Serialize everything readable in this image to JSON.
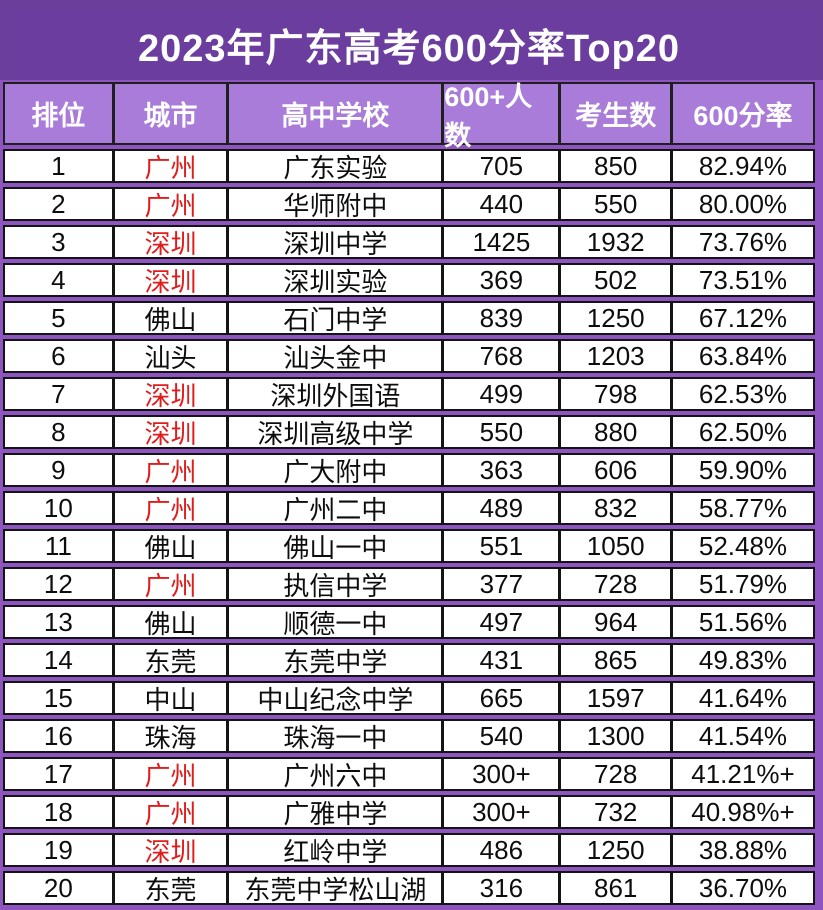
{
  "title": "2023年广东高考600分率Top20",
  "colors": {
    "title_bg": "#6a3d9e",
    "header_bg": "#aa7cd9",
    "frame_bg": "#8e55c0",
    "highlight_city_text": "#e11c1c",
    "border": "#141414",
    "row_bg": "#ffffff"
  },
  "table": {
    "columns": [
      {
        "key": "rank",
        "label": "排位"
      },
      {
        "key": "city",
        "label": "城市"
      },
      {
        "key": "school",
        "label": "高中学校"
      },
      {
        "key": "count600",
        "label": "600+人数"
      },
      {
        "key": "candidates",
        "label": "考生数"
      },
      {
        "key": "rate",
        "label": "600分率"
      }
    ],
    "rows": [
      {
        "rank": "1",
        "city": "广州",
        "city_red": true,
        "school": "广东实验",
        "count600": "705",
        "candidates": "850",
        "rate": "82.94%"
      },
      {
        "rank": "2",
        "city": "广州",
        "city_red": true,
        "school": "华师附中",
        "count600": "440",
        "candidates": "550",
        "rate": "80.00%"
      },
      {
        "rank": "3",
        "city": "深圳",
        "city_red": true,
        "school": "深圳中学",
        "count600": "1425",
        "candidates": "1932",
        "rate": "73.76%"
      },
      {
        "rank": "4",
        "city": "深圳",
        "city_red": true,
        "school": "深圳实验",
        "count600": "369",
        "candidates": "502",
        "rate": "73.51%"
      },
      {
        "rank": "5",
        "city": "佛山",
        "city_red": false,
        "school": "石门中学",
        "count600": "839",
        "candidates": "1250",
        "rate": "67.12%"
      },
      {
        "rank": "6",
        "city": "汕头",
        "city_red": false,
        "school": "汕头金中",
        "count600": "768",
        "candidates": "1203",
        "rate": "63.84%"
      },
      {
        "rank": "7",
        "city": "深圳",
        "city_red": true,
        "school": "深圳外国语",
        "count600": "499",
        "candidates": "798",
        "rate": "62.53%"
      },
      {
        "rank": "8",
        "city": "深圳",
        "city_red": true,
        "school": "深圳高级中学",
        "count600": "550",
        "candidates": "880",
        "rate": "62.50%"
      },
      {
        "rank": "9",
        "city": "广州",
        "city_red": true,
        "school": "广大附中",
        "count600": "363",
        "candidates": "606",
        "rate": "59.90%"
      },
      {
        "rank": "10",
        "city": "广州",
        "city_red": true,
        "school": "广州二中",
        "count600": "489",
        "candidates": "832",
        "rate": "58.77%"
      },
      {
        "rank": "11",
        "city": "佛山",
        "city_red": false,
        "school": "佛山一中",
        "count600": "551",
        "candidates": "1050",
        "rate": "52.48%"
      },
      {
        "rank": "12",
        "city": "广州",
        "city_red": true,
        "school": "执信中学",
        "count600": "377",
        "candidates": "728",
        "rate": "51.79%"
      },
      {
        "rank": "13",
        "city": "佛山",
        "city_red": false,
        "school": "顺德一中",
        "count600": "497",
        "candidates": "964",
        "rate": "51.56%"
      },
      {
        "rank": "14",
        "city": "东莞",
        "city_red": false,
        "school": "东莞中学",
        "count600": "431",
        "candidates": "865",
        "rate": "49.83%"
      },
      {
        "rank": "15",
        "city": "中山",
        "city_red": false,
        "school": "中山纪念中学",
        "count600": "665",
        "candidates": "1597",
        "rate": "41.64%"
      },
      {
        "rank": "16",
        "city": "珠海",
        "city_red": false,
        "school": "珠海一中",
        "count600": "540",
        "candidates": "1300",
        "rate": "41.54%"
      },
      {
        "rank": "17",
        "city": "广州",
        "city_red": true,
        "school": "广州六中",
        "count600": "300+",
        "candidates": "728",
        "rate": "41.21%+"
      },
      {
        "rank": "18",
        "city": "广州",
        "city_red": true,
        "school": "广雅中学",
        "count600": "300+",
        "candidates": "732",
        "rate": "40.98%+"
      },
      {
        "rank": "19",
        "city": "深圳",
        "city_red": true,
        "school": "红岭中学",
        "count600": "486",
        "candidates": "1250",
        "rate": "38.88%"
      },
      {
        "rank": "20",
        "city": "东莞",
        "city_red": false,
        "school": "东莞中学松山湖",
        "count600": "316",
        "candidates": "861",
        "rate": "36.70%"
      }
    ]
  }
}
